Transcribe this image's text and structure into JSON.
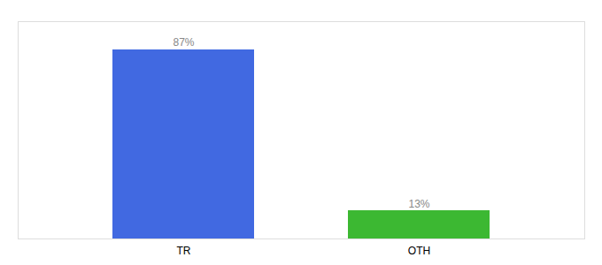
{
  "chart_data": {
    "type": "bar",
    "categories": [
      "TR",
      "OTH"
    ],
    "values": [
      87,
      13
    ],
    "value_labels": [
      "87%",
      "13%"
    ],
    "colors": [
      "#4169e1",
      "#3cb832"
    ],
    "ylim": [
      0,
      100
    ],
    "data_labels": true,
    "tick_labels": "x"
  }
}
